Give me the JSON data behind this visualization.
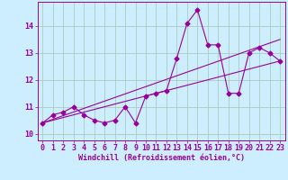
{
  "xlabel": "Windchill (Refroidissement éolien,°C)",
  "bg_color": "#cceeff",
  "grid_color": "#aaccbb",
  "line_color": "#990099",
  "xlim": [
    -0.5,
    23.5
  ],
  "ylim": [
    9.75,
    14.9
  ],
  "yticks": [
    10,
    11,
    12,
    13,
    14
  ],
  "xticks": [
    0,
    1,
    2,
    3,
    4,
    5,
    6,
    7,
    8,
    9,
    10,
    11,
    12,
    13,
    14,
    15,
    16,
    17,
    18,
    19,
    20,
    21,
    22,
    23
  ],
  "series1_x": [
    0,
    1,
    2,
    3,
    4,
    5,
    6,
    7,
    8,
    9,
    10,
    11,
    12,
    13,
    14,
    15,
    16,
    17,
    18,
    19,
    20,
    21,
    22,
    23
  ],
  "series1_y": [
    10.4,
    10.7,
    10.8,
    11.0,
    10.7,
    10.5,
    10.4,
    10.5,
    11.0,
    10.4,
    11.4,
    11.5,
    11.6,
    12.8,
    14.1,
    14.6,
    13.3,
    13.3,
    11.5,
    11.5,
    13.0,
    13.2,
    13.0,
    12.7
  ],
  "series2_x": [
    0,
    23
  ],
  "series2_y": [
    10.4,
    12.7
  ],
  "series3_x": [
    0,
    23
  ],
  "series3_y": [
    10.4,
    13.5
  ],
  "xlabel_fontsize": 6,
  "tick_fontsize": 6
}
